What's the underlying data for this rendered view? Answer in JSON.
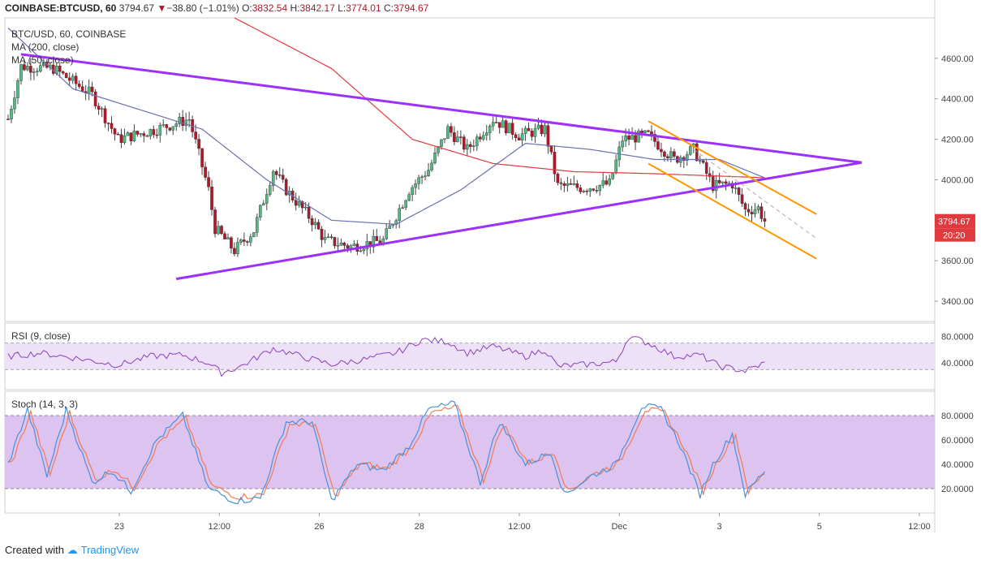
{
  "header": {
    "symbol": "COINBASE:BTCUSD, 60",
    "last": "3794.67",
    "change": "−38.80 (−1.01%)",
    "o_label": "O:",
    "o": "3832.54",
    "h_label": "H:",
    "h": "3842.17",
    "l_label": "L:",
    "l": "3774.01",
    "c_label": "C:",
    "c": "3794.67"
  },
  "legend": {
    "pair": "BTC/USD, 60, COINBASE",
    "ma200": "MA (200, close)",
    "ma50": "MA (50, close)"
  },
  "price_tag": {
    "value": "3794.67",
    "countdown": "20:20"
  },
  "footer": {
    "created": "Created with",
    "brand": "TradingView"
  },
  "colors": {
    "up": "#53b987",
    "down": "#b2182b",
    "ma200": "#e0393e",
    "ma50": "#6b6fb5",
    "triangle": "#9b30ff",
    "channel": "#ff9800",
    "rsi": "#8e3fbf",
    "rsi_band": "#ece1f6",
    "stoch_band": "#dcc3f0",
    "stoch_k": "#4a90d9",
    "stoch_d": "#f07a55",
    "price_tag": "#e0393e"
  },
  "chart_data": [
    {
      "type": "candlestick",
      "title": "BTC/USD, 60, COINBASE",
      "x_tick_labels": [
        "23",
        "12:00",
        "26",
        "28",
        "12:00",
        "Dec",
        "3",
        "5",
        "12:00"
      ],
      "y_ticks": [
        3400,
        3600,
        3800,
        4000,
        4200,
        4400,
        4600
      ],
      "y_tick_labels": [
        "3400.00",
        "3600.00",
        "3800.00",
        "4000.00",
        "4200.00",
        "4400.00",
        "4600.00"
      ],
      "ylim": [
        3300,
        4800
      ],
      "last_price": 3794.67,
      "key_prices": [
        {
          "t": 0,
          "p": 4300
        },
        {
          "t": 4,
          "p": 4560
        },
        {
          "t": 14,
          "p": 4550
        },
        {
          "t": 26,
          "p": 4420
        },
        {
          "t": 34,
          "p": 4200
        },
        {
          "t": 46,
          "p": 4250
        },
        {
          "t": 56,
          "p": 4300
        },
        {
          "t": 62,
          "p": 3950
        },
        {
          "t": 64,
          "p": 3760
        },
        {
          "t": 70,
          "p": 3650
        },
        {
          "t": 76,
          "p": 3750
        },
        {
          "t": 82,
          "p": 4050
        },
        {
          "t": 86,
          "p": 3950
        },
        {
          "t": 94,
          "p": 3800
        },
        {
          "t": 98,
          "p": 3700
        },
        {
          "t": 106,
          "p": 3670
        },
        {
          "t": 116,
          "p": 3700
        },
        {
          "t": 124,
          "p": 3950
        },
        {
          "t": 130,
          "p": 4050
        },
        {
          "t": 136,
          "p": 4250
        },
        {
          "t": 142,
          "p": 4150
        },
        {
          "t": 150,
          "p": 4300
        },
        {
          "t": 158,
          "p": 4220
        },
        {
          "t": 166,
          "p": 4250
        },
        {
          "t": 170,
          "p": 3970
        },
        {
          "t": 178,
          "p": 3960
        },
        {
          "t": 186,
          "p": 3980
        },
        {
          "t": 190,
          "p": 4200
        },
        {
          "t": 198,
          "p": 4220
        },
        {
          "t": 206,
          "p": 4100
        },
        {
          "t": 212,
          "p": 4150
        },
        {
          "t": 218,
          "p": 3970
        },
        {
          "t": 224,
          "p": 3980
        },
        {
          "t": 228,
          "p": 3850
        },
        {
          "t": 232,
          "p": 3860
        },
        {
          "t": 234,
          "p": 3794.67
        }
      ],
      "ma200_points": [
        {
          "t": 70,
          "p": 4800
        },
        {
          "t": 100,
          "p": 4550
        },
        {
          "t": 125,
          "p": 4200
        },
        {
          "t": 150,
          "p": 4080
        },
        {
          "t": 175,
          "p": 4040
        },
        {
          "t": 200,
          "p": 4030
        },
        {
          "t": 234,
          "p": 4010
        }
      ],
      "ma50_points": [
        {
          "t": 0,
          "p": 4750
        },
        {
          "t": 20,
          "p": 4450
        },
        {
          "t": 40,
          "p": 4350
        },
        {
          "t": 60,
          "p": 4250
        },
        {
          "t": 80,
          "p": 4000
        },
        {
          "t": 100,
          "p": 3800
        },
        {
          "t": 120,
          "p": 3780
        },
        {
          "t": 140,
          "p": 3950
        },
        {
          "t": 160,
          "p": 4180
        },
        {
          "t": 180,
          "p": 4150
        },
        {
          "t": 200,
          "p": 4100
        },
        {
          "t": 220,
          "p": 4100
        },
        {
          "t": 234,
          "p": 4010
        }
      ],
      "triangle_upper": [
        {
          "t": 4,
          "p": 4620
        },
        {
          "t": 264,
          "p": 4085
        }
      ],
      "triangle_lower": [
        {
          "t": 52,
          "p": 3510
        },
        {
          "t": 264,
          "p": 4085
        }
      ],
      "channel_upper": [
        {
          "t": 198,
          "p": 4290
        },
        {
          "t": 250,
          "p": 3830
        }
      ],
      "channel_lower": [
        {
          "t": 198,
          "p": 4080
        },
        {
          "t": 250,
          "p": 3610
        }
      ],
      "channel_mid_dashed": [
        {
          "t": 212,
          "p": 4150
        },
        {
          "t": 250,
          "p": 3710
        }
      ]
    },
    {
      "type": "line",
      "title": "RSI (9, close)",
      "y_tick_labels": [
        "80.0000",
        "40.0000"
      ],
      "y_ticks": [
        80,
        40
      ],
      "ylim": [
        0,
        100
      ],
      "band": [
        30,
        70
      ],
      "key_values": [
        {
          "t": 0,
          "v": 50
        },
        {
          "t": 10,
          "v": 55
        },
        {
          "t": 20,
          "v": 48
        },
        {
          "t": 34,
          "v": 37
        },
        {
          "t": 44,
          "v": 50
        },
        {
          "t": 54,
          "v": 52
        },
        {
          "t": 62,
          "v": 40
        },
        {
          "t": 66,
          "v": 25
        },
        {
          "t": 72,
          "v": 35
        },
        {
          "t": 82,
          "v": 62
        },
        {
          "t": 92,
          "v": 48
        },
        {
          "t": 100,
          "v": 38
        },
        {
          "t": 110,
          "v": 45
        },
        {
          "t": 120,
          "v": 55
        },
        {
          "t": 128,
          "v": 75
        },
        {
          "t": 136,
          "v": 72
        },
        {
          "t": 142,
          "v": 55
        },
        {
          "t": 150,
          "v": 65
        },
        {
          "t": 160,
          "v": 50
        },
        {
          "t": 166,
          "v": 60
        },
        {
          "t": 170,
          "v": 35
        },
        {
          "t": 180,
          "v": 38
        },
        {
          "t": 188,
          "v": 42
        },
        {
          "t": 192,
          "v": 80
        },
        {
          "t": 198,
          "v": 70
        },
        {
          "t": 206,
          "v": 50
        },
        {
          "t": 214,
          "v": 52
        },
        {
          "t": 220,
          "v": 35
        },
        {
          "t": 228,
          "v": 28
        },
        {
          "t": 234,
          "v": 40
        }
      ]
    },
    {
      "type": "line",
      "title": "Stoch (14, 3, 3)",
      "y_tick_labels": [
        "80.0000",
        "60.0000",
        "40.0000",
        "20.0000"
      ],
      "y_ticks": [
        80,
        60,
        40,
        20
      ],
      "ylim": [
        0,
        100
      ],
      "band": [
        20,
        80
      ],
      "key_values": [
        {
          "t": 0,
          "v": 40
        },
        {
          "t": 6,
          "v": 85
        },
        {
          "t": 12,
          "v": 30
        },
        {
          "t": 18,
          "v": 85
        },
        {
          "t": 26,
          "v": 25
        },
        {
          "t": 32,
          "v": 35
        },
        {
          "t": 38,
          "v": 18
        },
        {
          "t": 46,
          "v": 60
        },
        {
          "t": 54,
          "v": 80
        },
        {
          "t": 62,
          "v": 20
        },
        {
          "t": 70,
          "v": 10
        },
        {
          "t": 78,
          "v": 12
        },
        {
          "t": 86,
          "v": 75
        },
        {
          "t": 94,
          "v": 75
        },
        {
          "t": 100,
          "v": 10
        },
        {
          "t": 108,
          "v": 40
        },
        {
          "t": 116,
          "v": 35
        },
        {
          "t": 124,
          "v": 55
        },
        {
          "t": 130,
          "v": 85
        },
        {
          "t": 138,
          "v": 90
        },
        {
          "t": 146,
          "v": 25
        },
        {
          "t": 152,
          "v": 75
        },
        {
          "t": 160,
          "v": 40
        },
        {
          "t": 168,
          "v": 50
        },
        {
          "t": 172,
          "v": 15
        },
        {
          "t": 180,
          "v": 30
        },
        {
          "t": 188,
          "v": 40
        },
        {
          "t": 196,
          "v": 88
        },
        {
          "t": 202,
          "v": 85
        },
        {
          "t": 208,
          "v": 55
        },
        {
          "t": 214,
          "v": 15
        },
        {
          "t": 218,
          "v": 40
        },
        {
          "t": 224,
          "v": 65
        },
        {
          "t": 228,
          "v": 15
        },
        {
          "t": 234,
          "v": 35
        }
      ],
      "d_offset": 1
    }
  ]
}
